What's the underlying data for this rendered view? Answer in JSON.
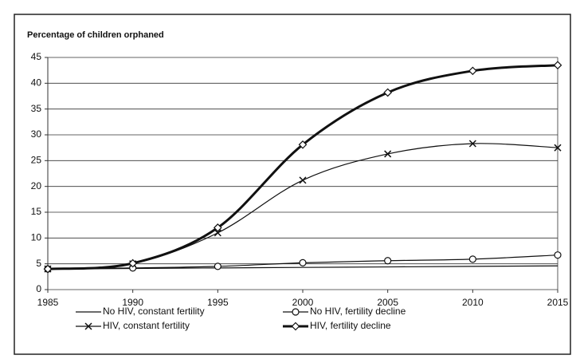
{
  "chart_data": {
    "type": "line",
    "title": "Percentage of children orphaned",
    "x": [
      1985,
      1990,
      1995,
      2000,
      2005,
      2010,
      2015
    ],
    "xlim": [
      1985,
      2015
    ],
    "xticks": [
      1985,
      1990,
      1995,
      2000,
      2005,
      2010,
      2015
    ],
    "ylim": [
      0,
      45
    ],
    "yticks": [
      0,
      5,
      10,
      15,
      20,
      25,
      30,
      35,
      40,
      45
    ],
    "grid": true,
    "series": [
      {
        "name": "No HIV, constant fertility",
        "color": "#111111",
        "marker": "none",
        "line_width": 1.2,
        "values": [
          4,
          4.1,
          4.2,
          4.3,
          4.4,
          4.5,
          4.6
        ]
      },
      {
        "name": "No HIV, fertility decline",
        "color": "#111111",
        "marker": "circle",
        "line_width": 1.2,
        "values": [
          4,
          4.2,
          4.5,
          5.2,
          5.6,
          5.9,
          6.7
        ]
      },
      {
        "name": "HIV, constant fertility",
        "color": "#111111",
        "marker": "x",
        "line_width": 1.2,
        "values": [
          4,
          5,
          11,
          21.2,
          26.3,
          28.3,
          27.5
        ]
      },
      {
        "name": "HIV, fertility decline",
        "color": "#111111",
        "marker": "diamond",
        "line_width": 3,
        "values": [
          4,
          5.1,
          12,
          28.1,
          38.2,
          42.4,
          43.5
        ]
      }
    ]
  }
}
